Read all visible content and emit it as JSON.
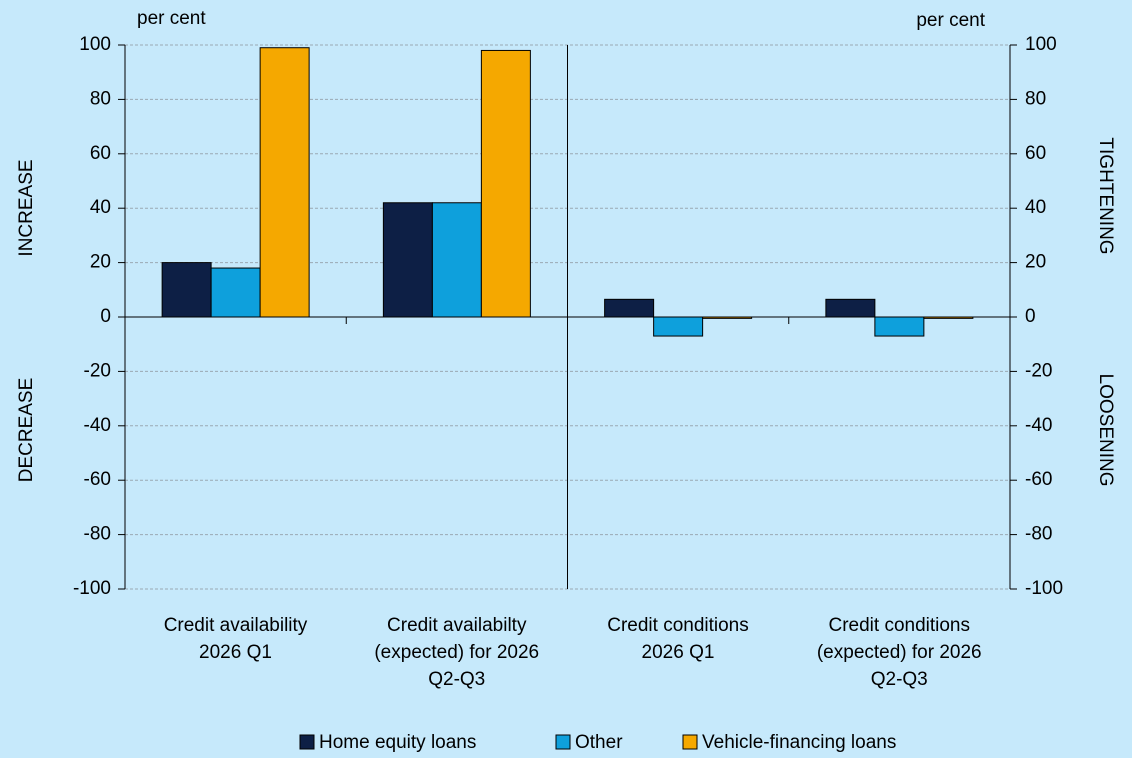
{
  "chart_data": {
    "type": "bar",
    "categories": [
      "Credit availability\n2026 Q1",
      "Credit availabilty\n(expected) for 2026\nQ2-Q3",
      "Credit conditions\n2026 Q1",
      "Credit conditions\n(expected) for 2026\nQ2-Q3"
    ],
    "series": [
      {
        "name": "Home equity loans",
        "color": "#0d1f45",
        "values": [
          20,
          42,
          6.5,
          6.5
        ]
      },
      {
        "name": "Other",
        "color": "#0ea0dc",
        "values": [
          18,
          42,
          -7,
          -7
        ]
      },
      {
        "name": "Vehicle-financing loans",
        "color": "#f5a800",
        "values": [
          99,
          98,
          -0.5,
          -0.5
        ]
      }
    ],
    "ylim": [
      -100,
      100
    ],
    "yticks": [
      -100,
      -80,
      -60,
      -40,
      -20,
      0,
      20,
      40,
      60,
      80,
      100
    ],
    "y2lim": [
      -100,
      100
    ],
    "y2ticks": [
      -100,
      -80,
      -60,
      -40,
      -20,
      0,
      20,
      40,
      60,
      80,
      100
    ],
    "ylabel": "per cent",
    "y2label": "per cent",
    "annotations": [
      "INCREASE",
      "DECREASE",
      "TIGHTENING",
      "LOOSENING"
    ],
    "grid": true,
    "legend": "bottom"
  }
}
